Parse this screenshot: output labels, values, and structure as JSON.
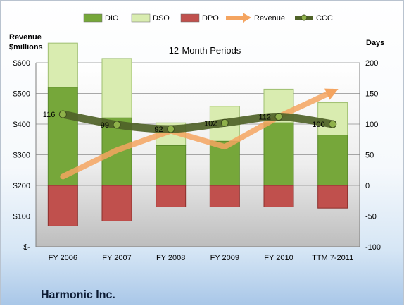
{
  "company": "Harmonic Inc.",
  "chart_data": {
    "type": "bar",
    "subtitle": "12-Month Periods",
    "left_axis_title": [
      "Revenue",
      "$millions"
    ],
    "right_axis_title": "Days",
    "categories": [
      "FY 2006",
      "FY 2007",
      "FY 2008",
      "FY 2009",
      "FY 2010",
      "TTM 7-2011"
    ],
    "left_axis": {
      "min": 0,
      "max": 600,
      "step": 100,
      "tick_labels": [
        "$-",
        "$100",
        "$200",
        "$300",
        "$400",
        "$500",
        "$600"
      ]
    },
    "right_axis": {
      "min": -100,
      "max": 200,
      "step": 50,
      "tick_labels": [
        "-100",
        "-50",
        "0",
        "50",
        "100",
        "150",
        "200"
      ]
    },
    "grid": true,
    "legend_position": "top",
    "series": [
      {
        "name": "DIO",
        "color": "#76a73a",
        "values": [
          160,
          110,
          65,
          72,
          102,
          82
        ]
      },
      {
        "name": "DSO",
        "color": "#d9ecb0",
        "values": [
          72,
          97,
          37,
          57,
          55,
          53
        ]
      },
      {
        "name": "DPO",
        "color": "#c0504d",
        "values": [
          -66,
          -58,
          -35,
          -35,
          -35,
          -37
        ]
      },
      {
        "name": "Revenue",
        "color": "#f4a460",
        "values": [
          229,
          315,
          378,
          326,
          424,
          506
        ]
      },
      {
        "name": "CCC",
        "color": "#4f6228",
        "values": [
          116,
          99,
          92,
          102,
          112,
          100
        ],
        "labels": [
          "116",
          "99",
          "92",
          "102",
          "112",
          "100"
        ]
      }
    ]
  }
}
